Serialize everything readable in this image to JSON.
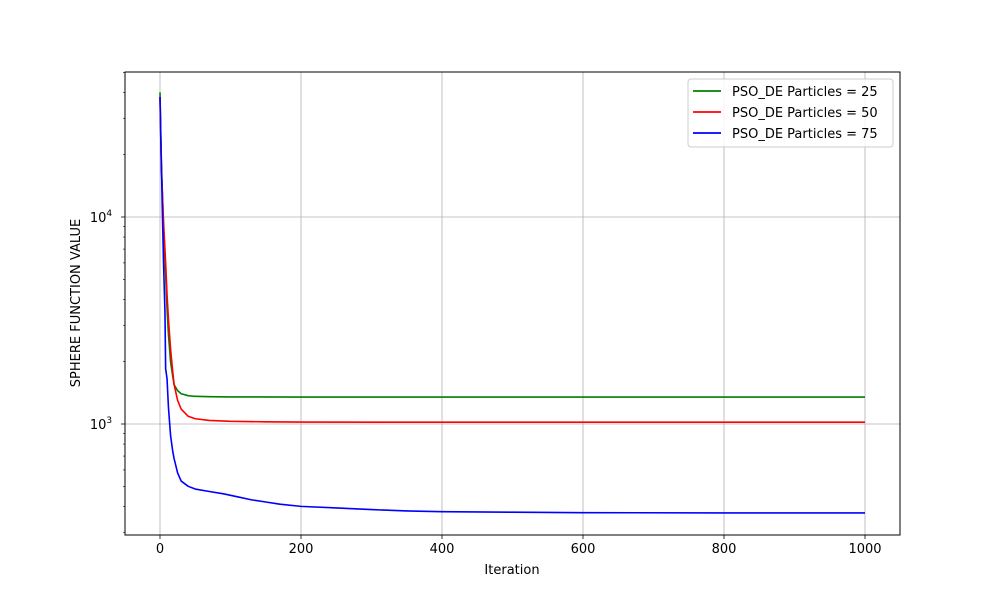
{
  "chart_data": {
    "type": "line",
    "title": "",
    "xlabel": "Iteration",
    "ylabel": "SPHERE FUNCTION VALUE",
    "xlim": [
      -50,
      1050
    ],
    "ylim": [
      300,
      50000
    ],
    "yscale": "log",
    "grid": true,
    "legend_position": "top-right",
    "x_ticks": [
      {
        "value": 0,
        "label": "0"
      },
      {
        "value": 200,
        "label": "200"
      },
      {
        "value": 400,
        "label": "400"
      },
      {
        "value": 600,
        "label": "600"
      },
      {
        "value": 800,
        "label": "800"
      },
      {
        "value": 1000,
        "label": "1000"
      }
    ],
    "y_ticks": [
      {
        "value": 1000,
        "base": "10",
        "exp": "3"
      },
      {
        "value": 10000,
        "base": "10",
        "exp": "4"
      }
    ],
    "series": [
      {
        "name": "PSO_DE Particles = 25",
        "color": "#008000",
        "x": [
          0,
          2,
          5,
          8,
          10,
          12,
          15,
          18,
          20,
          25,
          30,
          40,
          50,
          70,
          100,
          200,
          400,
          600,
          800,
          1000
        ],
        "y": [
          40000,
          18000,
          9000,
          5200,
          3600,
          2700,
          2000,
          1700,
          1550,
          1450,
          1400,
          1370,
          1360,
          1355,
          1352,
          1350,
          1350,
          1350,
          1350,
          1350
        ]
      },
      {
        "name": "PSO_DE Particles = 50",
        "color": "#ff0000",
        "x": [
          0,
          2,
          5,
          8,
          10,
          12,
          15,
          18,
          20,
          25,
          30,
          40,
          50,
          70,
          100,
          150,
          200,
          400,
          600,
          800,
          1000
        ],
        "y": [
          38000,
          17000,
          9500,
          6000,
          4200,
          3200,
          2300,
          1800,
          1550,
          1300,
          1180,
          1090,
          1060,
          1040,
          1030,
          1025,
          1022,
          1020,
          1020,
          1020,
          1020
        ]
      },
      {
        "name": "PSO_DE Particles = 75",
        "color": "#0000ff",
        "x": [
          0,
          1,
          2,
          3,
          5,
          7,
          8,
          9,
          10,
          12,
          15,
          18,
          20,
          25,
          30,
          40,
          50,
          70,
          90,
          110,
          130,
          150,
          170,
          200,
          250,
          300,
          350,
          400,
          500,
          600,
          800,
          1000
        ],
        "y": [
          38000,
          25000,
          18000,
          12000,
          6000,
          3500,
          1850,
          1750,
          1650,
          1200,
          880,
          740,
          680,
          580,
          530,
          500,
          485,
          472,
          460,
          445,
          430,
          420,
          410,
          400,
          393,
          386,
          380,
          377,
          375,
          373,
          372,
          372
        ]
      }
    ]
  }
}
